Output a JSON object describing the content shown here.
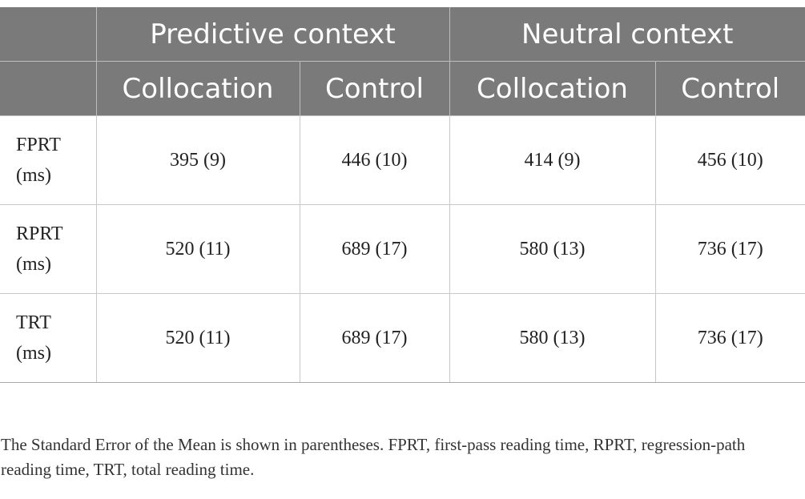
{
  "table": {
    "group_headers": [
      "",
      "Predictive context",
      "Neutral context"
    ],
    "sub_headers": [
      "",
      "Collocation",
      "Control",
      "Collocation",
      "Control"
    ],
    "rows": [
      {
        "label_line1": "FPRT",
        "label_line2": "(ms)",
        "cells": [
          "395 (9)",
          "446 (10)",
          "414 (9)",
          "456 (10)"
        ]
      },
      {
        "label_line1": "RPRT",
        "label_line2": "(ms)",
        "cells": [
          "520 (11)",
          "689 (17)",
          "580 (13)",
          "736 (17)"
        ]
      },
      {
        "label_line1": "TRT",
        "label_line2": "(ms)",
        "cells": [
          "520 (11)",
          "689 (17)",
          "580 (13)",
          "736 (17)"
        ]
      }
    ]
  },
  "footnote": "The Standard Error of the Mean is shown in parentheses. FPRT, first-pass reading time, RPRT, regression-path reading time, TRT, total reading time.",
  "colors": {
    "header_bg": "#7a7a7a",
    "header_text": "#ffffff",
    "grid": "#c8c8c8"
  }
}
